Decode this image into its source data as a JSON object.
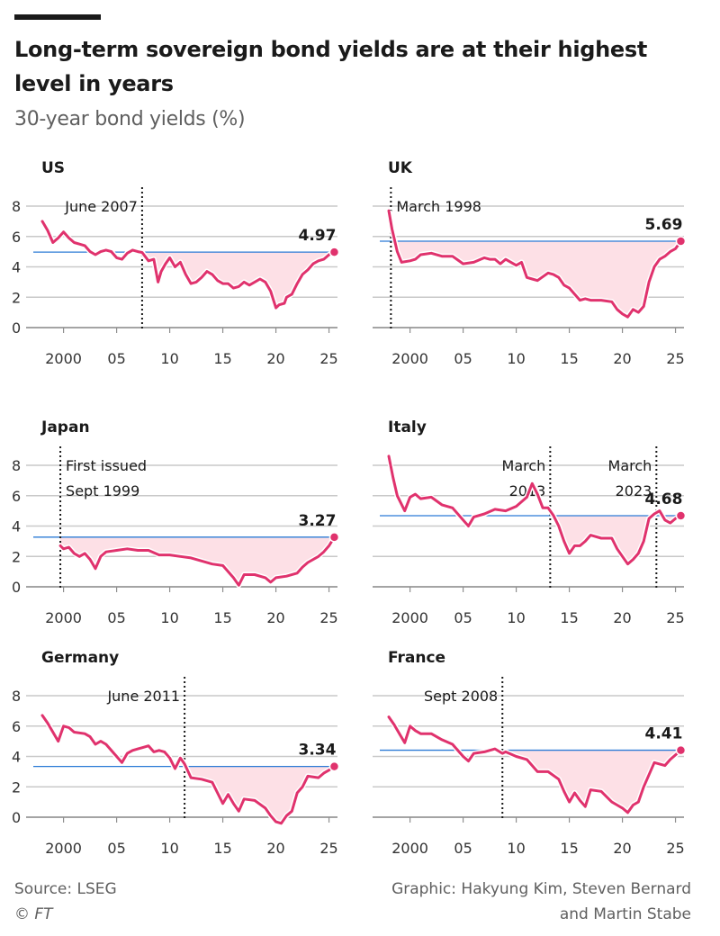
{
  "header": {
    "title": "Long-term sovereign bond yields are at their highest level in years",
    "subtitle": "30-year bond yields (%)"
  },
  "footer": {
    "source": "Source: LSEG",
    "copyright": "© FT",
    "credit_line1": "Graphic: Hakyung Kim, Steven Bernard",
    "credit_line2": "and Martin Stabe"
  },
  "colors": {
    "line": "#e0326d",
    "shade": "#fde0e6",
    "reference_line": "#2b7bd6",
    "grid": "#c9c9c9",
    "axis_text": "#333333"
  },
  "chart_data": [
    {
      "type": "line",
      "name": "US",
      "title": "US",
      "xlim": [
        1998,
        2025.8
      ],
      "ylim": [
        0,
        8
      ],
      "yticks": [
        0,
        2,
        4,
        6,
        8
      ],
      "xticks": [
        2000,
        2005,
        2010,
        2015,
        2020,
        2025
      ],
      "xtick_labels": [
        "2000",
        "05",
        "10",
        "15",
        "20",
        "25"
      ],
      "current_value": 4.97,
      "current_label": "4.97",
      "annotations": [
        {
          "x": 2007.4,
          "label_lines": [
            "June 2007"
          ]
        }
      ],
      "series": {
        "x": [
          1998,
          1998.5,
          1999,
          1999.5,
          2000,
          2000.5,
          2001,
          2001.5,
          2002,
          2002.5,
          2003,
          2003.5,
          2004,
          2004.5,
          2005,
          2005.5,
          2006,
          2006.5,
          2007,
          2007.4,
          2008,
          2008.5,
          2008.9,
          2009.2,
          2009.6,
          2010,
          2010.5,
          2011,
          2011.5,
          2012,
          2012.5,
          2013,
          2013.5,
          2014,
          2014.5,
          2015,
          2015.5,
          2016,
          2016.5,
          2017,
          2017.5,
          2018,
          2018.5,
          2019,
          2019.5,
          2020,
          2020.3,
          2020.8,
          2021,
          2021.5,
          2022,
          2022.5,
          2023,
          2023.5,
          2024,
          2024.5,
          2025,
          2025.5
        ],
        "values": [
          7.0,
          6.4,
          5.6,
          5.9,
          6.3,
          5.9,
          5.6,
          5.5,
          5.4,
          5.0,
          4.8,
          5.0,
          5.1,
          5.0,
          4.6,
          4.5,
          4.9,
          5.1,
          5.0,
          4.95,
          4.4,
          4.5,
          3.0,
          3.7,
          4.2,
          4.6,
          4.0,
          4.3,
          3.5,
          2.9,
          3.0,
          3.3,
          3.7,
          3.5,
          3.1,
          2.9,
          2.9,
          2.6,
          2.7,
          3.0,
          2.8,
          3.0,
          3.2,
          3.0,
          2.4,
          1.3,
          1.5,
          1.6,
          2.0,
          2.2,
          2.9,
          3.5,
          3.8,
          4.2,
          4.4,
          4.5,
          4.8,
          4.97
        ]
      }
    },
    {
      "type": "line",
      "name": "UK",
      "title": "UK",
      "xlim": [
        1998,
        2025.8
      ],
      "ylim": [
        0,
        8
      ],
      "yticks": [
        0,
        2,
        4,
        6,
        8
      ],
      "xticks": [
        2000,
        2005,
        2010,
        2015,
        2020,
        2025
      ],
      "xtick_labels": [
        "2000",
        "05",
        "10",
        "15",
        "20",
        "25"
      ],
      "current_value": 5.69,
      "current_label": "5.69",
      "annotations": [
        {
          "x": 1998.2,
          "label_lines": [
            "March 1998"
          ]
        }
      ],
      "series": {
        "x": [
          1998,
          1998.3,
          1998.8,
          1999.2,
          2000,
          2000.5,
          2001,
          2002,
          2003,
          2004,
          2005,
          2006,
          2007,
          2007.5,
          2008,
          2008.5,
          2009,
          2009.5,
          2010,
          2010.5,
          2011,
          2011.5,
          2012,
          2013,
          2013.5,
          2014,
          2014.5,
          2015,
          2016,
          2016.5,
          2017,
          2018,
          2019,
          2019.5,
          2020,
          2020.5,
          2021,
          2021.5,
          2022,
          2022.5,
          2023,
          2023.5,
          2024,
          2024.5,
          2025,
          2025.5
        ],
        "values": [
          7.7,
          6.5,
          5.0,
          4.3,
          4.4,
          4.5,
          4.8,
          4.9,
          4.7,
          4.7,
          4.2,
          4.3,
          4.6,
          4.5,
          4.5,
          4.2,
          4.5,
          4.3,
          4.1,
          4.3,
          3.3,
          3.2,
          3.1,
          3.6,
          3.5,
          3.3,
          2.8,
          2.6,
          1.8,
          1.9,
          1.8,
          1.8,
          1.7,
          1.2,
          0.9,
          0.7,
          1.2,
          1.0,
          1.4,
          3.0,
          4.0,
          4.5,
          4.7,
          5.0,
          5.2,
          5.69
        ]
      }
    },
    {
      "type": "line",
      "name": "Japan",
      "title": "Japan",
      "xlim": [
        1998,
        2025.8
      ],
      "ylim": [
        0,
        8
      ],
      "yticks": [
        0,
        2,
        4,
        6,
        8
      ],
      "xticks": [
        2000,
        2005,
        2010,
        2015,
        2020,
        2025
      ],
      "xtick_labels": [
        "2000",
        "05",
        "10",
        "15",
        "20",
        "25"
      ],
      "current_value": 3.27,
      "current_label": "3.27",
      "annotations": [
        {
          "x": 1999.7,
          "label_lines": [
            "First issued",
            "Sept 1999"
          ]
        }
      ],
      "series": {
        "x": [
          1999.7,
          2000,
          2000.5,
          2001,
          2001.5,
          2002,
          2002.5,
          2003,
          2003.5,
          2004,
          2005,
          2006,
          2007,
          2008,
          2009,
          2010,
          2011,
          2012,
          2013,
          2014,
          2015,
          2015.5,
          2016,
          2016.5,
          2017,
          2018,
          2019,
          2019.5,
          2020,
          2021,
          2022,
          2022.5,
          2023,
          2024,
          2024.5,
          2025,
          2025.5
        ],
        "values": [
          2.7,
          2.5,
          2.6,
          2.2,
          2.0,
          2.2,
          1.8,
          1.2,
          2.0,
          2.3,
          2.4,
          2.5,
          2.4,
          2.4,
          2.1,
          2.1,
          2.0,
          1.9,
          1.7,
          1.5,
          1.4,
          1.0,
          0.6,
          0.1,
          0.8,
          0.8,
          0.6,
          0.3,
          0.6,
          0.7,
          0.9,
          1.3,
          1.6,
          2.0,
          2.3,
          2.7,
          3.27
        ]
      }
    },
    {
      "type": "line",
      "name": "Italy",
      "title": "Italy",
      "xlim": [
        1998,
        2025.8
      ],
      "ylim": [
        0,
        8
      ],
      "yticks": [
        0,
        2,
        4,
        6,
        8
      ],
      "xticks": [
        2000,
        2005,
        2010,
        2015,
        2020,
        2025
      ],
      "xtick_labels": [
        "2000",
        "05",
        "10",
        "15",
        "20",
        "25"
      ],
      "current_value": 4.68,
      "current_label": "4.68",
      "annotations": [
        {
          "x": 2013.2,
          "label_lines": [
            "March",
            "2013"
          ]
        },
        {
          "x": 2023.2,
          "label_lines": [
            "March",
            "2023"
          ]
        }
      ],
      "series": {
        "x": [
          1998,
          1998.4,
          1998.8,
          1999.5,
          2000,
          2000.5,
          2001,
          2002,
          2003,
          2004,
          2005,
          2005.5,
          2006,
          2007,
          2008,
          2009,
          2010,
          2011,
          2011.5,
          2012,
          2012.5,
          2013,
          2013.5,
          2014,
          2014.5,
          2015,
          2015.5,
          2016,
          2016.5,
          2017,
          2018,
          2019,
          2019.5,
          2020,
          2020.5,
          2021,
          2021.5,
          2022,
          2022.5,
          2023,
          2023.5,
          2024,
          2024.5,
          2025,
          2025.5
        ],
        "values": [
          8.6,
          7.2,
          6.0,
          5.0,
          5.9,
          6.1,
          5.8,
          5.9,
          5.4,
          5.2,
          4.4,
          4.0,
          4.6,
          4.8,
          5.1,
          5.0,
          5.3,
          5.9,
          6.8,
          6.1,
          5.2,
          5.2,
          4.7,
          4.0,
          3.0,
          2.2,
          2.7,
          2.7,
          3.0,
          3.4,
          3.2,
          3.2,
          2.5,
          2.0,
          1.5,
          1.8,
          2.2,
          3.0,
          4.5,
          4.8,
          5.0,
          4.4,
          4.2,
          4.5,
          4.68
        ]
      }
    },
    {
      "type": "line",
      "name": "Germany",
      "title": "Germany",
      "xlim": [
        1998,
        2025.8
      ],
      "ylim": [
        0,
        8
      ],
      "yticks": [
        0,
        2,
        4,
        6,
        8
      ],
      "xticks": [
        2000,
        2005,
        2010,
        2015,
        2020,
        2025
      ],
      "xtick_labels": [
        "2000",
        "05",
        "10",
        "15",
        "20",
        "25"
      ],
      "current_value": 3.34,
      "current_label": "3.34",
      "annotations": [
        {
          "x": 2011.4,
          "label_lines": [
            "June 2011"
          ]
        }
      ],
      "series": {
        "x": [
          1998,
          1998.5,
          1999,
          1999.5,
          2000,
          2000.5,
          2001,
          2002,
          2002.5,
          2003,
          2003.5,
          2004,
          2005,
          2005.5,
          2006,
          2006.5,
          2007,
          2007.5,
          2008,
          2008.5,
          2009,
          2009.5,
          2010,
          2010.5,
          2011,
          2011.4,
          2012,
          2013,
          2014,
          2014.5,
          2015,
          2015.5,
          2016,
          2016.5,
          2017,
          2018,
          2019,
          2019.5,
          2020,
          2020.5,
          2021,
          2021.5,
          2022,
          2022.5,
          2023,
          2024,
          2024.5,
          2025,
          2025.5
        ],
        "values": [
          6.7,
          6.2,
          5.6,
          5.0,
          6.0,
          5.9,
          5.6,
          5.5,
          5.3,
          4.8,
          5.0,
          4.8,
          4.0,
          3.6,
          4.2,
          4.4,
          4.5,
          4.6,
          4.7,
          4.3,
          4.4,
          4.3,
          3.9,
          3.2,
          3.9,
          3.5,
          2.6,
          2.5,
          2.3,
          1.6,
          0.9,
          1.5,
          0.9,
          0.4,
          1.2,
          1.1,
          0.6,
          0.1,
          -0.3,
          -0.4,
          0.1,
          0.4,
          1.6,
          2.0,
          2.7,
          2.6,
          2.9,
          3.1,
          3.34
        ]
      }
    },
    {
      "type": "line",
      "name": "France",
      "title": "France",
      "xlim": [
        1998,
        2025.8
      ],
      "ylim": [
        0,
        8
      ],
      "yticks": [
        0,
        2,
        4,
        6,
        8
      ],
      "xticks": [
        2000,
        2005,
        2010,
        2015,
        2020,
        2025
      ],
      "xtick_labels": [
        "2000",
        "05",
        "10",
        "15",
        "20",
        "25"
      ],
      "current_value": 4.41,
      "current_label": "4.41",
      "annotations": [
        {
          "x": 2008.7,
          "label_lines": [
            "Sept 2008"
          ]
        }
      ],
      "series": {
        "x": [
          1998,
          1998.5,
          1999,
          1999.5,
          2000,
          2000.5,
          2001,
          2002,
          2003,
          2004,
          2005,
          2005.5,
          2006,
          2007,
          2008,
          2008.7,
          2009,
          2010,
          2011,
          2011.5,
          2012,
          2013,
          2014,
          2014.5,
          2015,
          2015.5,
          2016,
          2016.5,
          2017,
          2018,
          2019,
          2019.5,
          2020,
          2020.5,
          2021,
          2021.5,
          2022,
          2022.5,
          2023,
          2024,
          2024.5,
          2025,
          2025.5
        ],
        "values": [
          6.6,
          6.1,
          5.5,
          4.9,
          6.0,
          5.7,
          5.5,
          5.5,
          5.1,
          4.8,
          4.0,
          3.7,
          4.2,
          4.3,
          4.5,
          4.2,
          4.3,
          4.0,
          3.8,
          3.4,
          3.0,
          3.0,
          2.5,
          1.7,
          1.0,
          1.6,
          1.1,
          0.7,
          1.8,
          1.7,
          1.0,
          0.8,
          0.6,
          0.3,
          0.8,
          1.0,
          2.0,
          2.8,
          3.6,
          3.4,
          3.8,
          4.1,
          4.41
        ]
      }
    }
  ]
}
